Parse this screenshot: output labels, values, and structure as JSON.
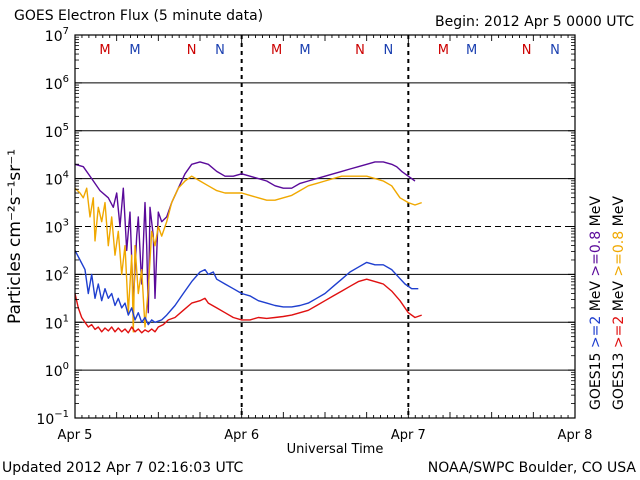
{
  "header": {
    "title": "GOES Electron Flux (5 minute data)",
    "begin": "Begin: 2012 Apr 5 0000 UTC"
  },
  "footer": {
    "updated": "Updated 2012 Apr  7 02:16:03 UTC",
    "credit": "NOAA/SWPC Boulder, CO USA"
  },
  "colors": {
    "goes15_2mev": "#1f3fcf",
    "goes13_2mev": "#e01010",
    "goes15_08mev": "#5a0a9a",
    "goes13_08mev": "#f0a800",
    "marker_m": "#cc0000",
    "marker_n": "#1a3fb0"
  },
  "chart_data": {
    "type": "line",
    "title": "GOES Electron Flux (5 minute data)",
    "xlabel": "Universal Time",
    "ylabel": "Particles cm⁻²s⁻¹sr⁻¹",
    "x_units": "days since 2012 Apr 5 0000 UTC",
    "xlim": [
      0,
      3
    ],
    "ylim_log10": [
      -1,
      7
    ],
    "y_scale": "log",
    "x_ticks": [
      {
        "x": 0,
        "label": "Apr 5"
      },
      {
        "x": 1,
        "label": "Apr 6"
      },
      {
        "x": 2,
        "label": "Apr 7"
      },
      {
        "x": 3,
        "label": "Apr 8"
      }
    ],
    "y_ticks": [
      {
        "exp": -1,
        "base": "10",
        "sup": "−1"
      },
      {
        "exp": 0,
        "base": "10",
        "sup": "0"
      },
      {
        "exp": 1,
        "base": "10",
        "sup": "1"
      },
      {
        "exp": 2,
        "base": "10",
        "sup": "2"
      },
      {
        "exp": 3,
        "base": "10",
        "sup": "3"
      },
      {
        "exp": 4,
        "base": "10",
        "sup": "4"
      },
      {
        "exp": 5,
        "base": "10",
        "sup": "5"
      },
      {
        "exp": 6,
        "base": "10",
        "sup": "6"
      },
      {
        "exp": 7,
        "base": "10",
        "sup": "7"
      }
    ],
    "threshold_log10": 3,
    "day_dividers": [
      1,
      2
    ],
    "markers": [
      {
        "x": 0.18,
        "label": "M",
        "kind": "m"
      },
      {
        "x": 0.36,
        "label": "M",
        "kind": "n"
      },
      {
        "x": 0.7,
        "label": "N",
        "kind": "m"
      },
      {
        "x": 0.87,
        "label": "N",
        "kind": "n"
      },
      {
        "x": 1.21,
        "label": "M",
        "kind": "m"
      },
      {
        "x": 1.38,
        "label": "M",
        "kind": "n"
      },
      {
        "x": 1.71,
        "label": "N",
        "kind": "m"
      },
      {
        "x": 1.88,
        "label": "N",
        "kind": "n"
      },
      {
        "x": 2.21,
        "label": "M",
        "kind": "m"
      },
      {
        "x": 2.38,
        "label": "M",
        "kind": "n"
      },
      {
        "x": 2.71,
        "label": "N",
        "kind": "m"
      },
      {
        "x": 2.88,
        "label": "N",
        "kind": "n"
      }
    ],
    "legend": [
      {
        "prefix": "GOES15",
        "label": ">=2",
        "unit": "MeV",
        "label2": ">=0.8",
        "unit2": "MeV",
        "color": "#1f3fcf",
        "color2": "#5a0a9a"
      },
      {
        "prefix": "GOES13",
        "label": ">=2",
        "unit": "MeV",
        "label2": ">=0.8",
        "unit2": "MeV",
        "color": "#e01010",
        "color2": "#f0a800"
      }
    ],
    "series": [
      {
        "name": "GOES15 >=0.8 MeV",
        "color": "#5a0a9a",
        "points_log10": [
          [
            0.0,
            4.3
          ],
          [
            0.05,
            4.25
          ],
          [
            0.1,
            4.0
          ],
          [
            0.15,
            3.75
          ],
          [
            0.2,
            3.6
          ],
          [
            0.23,
            3.4
          ],
          [
            0.25,
            3.7
          ],
          [
            0.27,
            3.0
          ],
          [
            0.29,
            3.8
          ],
          [
            0.31,
            2.5
          ],
          [
            0.33,
            3.3
          ],
          [
            0.35,
            1.4
          ],
          [
            0.37,
            2.8
          ],
          [
            0.38,
            3.2
          ],
          [
            0.4,
            1.8
          ],
          [
            0.42,
            3.5
          ],
          [
            0.43,
            2.6
          ],
          [
            0.44,
            1.2
          ],
          [
            0.45,
            3.4
          ],
          [
            0.47,
            2.8
          ],
          [
            0.48,
            1.5
          ],
          [
            0.5,
            3.3
          ],
          [
            0.52,
            3.1
          ],
          [
            0.55,
            3.2
          ],
          [
            0.58,
            3.5
          ],
          [
            0.62,
            3.8
          ],
          [
            0.66,
            4.1
          ],
          [
            0.7,
            4.3
          ],
          [
            0.75,
            4.35
          ],
          [
            0.8,
            4.3
          ],
          [
            0.85,
            4.15
          ],
          [
            0.9,
            4.05
          ],
          [
            0.95,
            4.05
          ],
          [
            1.0,
            4.1
          ],
          [
            1.05,
            4.05
          ],
          [
            1.1,
            4.0
          ],
          [
            1.15,
            3.95
          ],
          [
            1.2,
            3.85
          ],
          [
            1.25,
            3.8
          ],
          [
            1.3,
            3.8
          ],
          [
            1.35,
            3.9
          ],
          [
            1.4,
            3.95
          ],
          [
            1.45,
            4.0
          ],
          [
            1.5,
            4.05
          ],
          [
            1.55,
            4.1
          ],
          [
            1.6,
            4.15
          ],
          [
            1.65,
            4.2
          ],
          [
            1.7,
            4.25
          ],
          [
            1.75,
            4.3
          ],
          [
            1.8,
            4.35
          ],
          [
            1.85,
            4.35
          ],
          [
            1.9,
            4.3
          ],
          [
            1.93,
            4.25
          ],
          [
            1.96,
            4.15
          ],
          [
            2.0,
            4.05
          ],
          [
            2.04,
            3.95
          ]
        ]
      },
      {
        "name": "GOES13 >=0.8 MeV",
        "color": "#f0a800",
        "points_log10": [
          [
            0.0,
            3.8
          ],
          [
            0.03,
            3.7
          ],
          [
            0.05,
            3.6
          ],
          [
            0.07,
            3.8
          ],
          [
            0.09,
            3.2
          ],
          [
            0.11,
            3.6
          ],
          [
            0.12,
            2.7
          ],
          [
            0.14,
            3.4
          ],
          [
            0.16,
            3.1
          ],
          [
            0.18,
            3.5
          ],
          [
            0.2,
            2.6
          ],
          [
            0.22,
            3.2
          ],
          [
            0.24,
            2.4
          ],
          [
            0.26,
            2.9
          ],
          [
            0.28,
            2.0
          ],
          [
            0.3,
            2.6
          ],
          [
            0.32,
            1.2
          ],
          [
            0.34,
            2.4
          ],
          [
            0.35,
            0.8
          ],
          [
            0.36,
            2.6
          ],
          [
            0.38,
            1.6
          ],
          [
            0.4,
            2.1
          ],
          [
            0.42,
            0.9
          ],
          [
            0.44,
            1.7
          ],
          [
            0.46,
            2.9
          ],
          [
            0.48,
            2.6
          ],
          [
            0.5,
            3.0
          ],
          [
            0.52,
            2.8
          ],
          [
            0.55,
            3.1
          ],
          [
            0.58,
            3.5
          ],
          [
            0.62,
            3.8
          ],
          [
            0.66,
            3.95
          ],
          [
            0.7,
            4.05
          ],
          [
            0.75,
            3.95
          ],
          [
            0.8,
            3.85
          ],
          [
            0.85,
            3.75
          ],
          [
            0.9,
            3.7
          ],
          [
            0.95,
            3.7
          ],
          [
            1.0,
            3.7
          ],
          [
            1.05,
            3.65
          ],
          [
            1.1,
            3.6
          ],
          [
            1.15,
            3.55
          ],
          [
            1.2,
            3.55
          ],
          [
            1.25,
            3.6
          ],
          [
            1.3,
            3.65
          ],
          [
            1.35,
            3.75
          ],
          [
            1.4,
            3.85
          ],
          [
            1.45,
            3.9
          ],
          [
            1.5,
            3.95
          ],
          [
            1.55,
            4.0
          ],
          [
            1.6,
            4.05
          ],
          [
            1.65,
            4.05
          ],
          [
            1.7,
            4.05
          ],
          [
            1.75,
            4.05
          ],
          [
            1.8,
            4.0
          ],
          [
            1.85,
            3.95
          ],
          [
            1.9,
            3.85
          ],
          [
            1.95,
            3.6
          ],
          [
            2.0,
            3.5
          ],
          [
            2.04,
            3.45
          ],
          [
            2.08,
            3.5
          ]
        ]
      },
      {
        "name": "GOES15 >=2 MeV",
        "color": "#1f3fcf",
        "points_log10": [
          [
            0.0,
            2.5
          ],
          [
            0.03,
            2.3
          ],
          [
            0.06,
            2.1
          ],
          [
            0.08,
            1.6
          ],
          [
            0.1,
            2.0
          ],
          [
            0.12,
            1.5
          ],
          [
            0.14,
            1.8
          ],
          [
            0.16,
            1.45
          ],
          [
            0.18,
            1.7
          ],
          [
            0.2,
            1.5
          ],
          [
            0.22,
            1.6
          ],
          [
            0.24,
            1.35
          ],
          [
            0.26,
            1.5
          ],
          [
            0.28,
            1.3
          ],
          [
            0.3,
            1.4
          ],
          [
            0.32,
            1.15
          ],
          [
            0.34,
            1.3
          ],
          [
            0.36,
            1.05
          ],
          [
            0.38,
            1.2
          ],
          [
            0.4,
            1.0
          ],
          [
            0.42,
            1.1
          ],
          [
            0.44,
            0.95
          ],
          [
            0.46,
            1.05
          ],
          [
            0.48,
            1.0
          ],
          [
            0.52,
            1.05
          ],
          [
            0.55,
            1.15
          ],
          [
            0.6,
            1.35
          ],
          [
            0.65,
            1.6
          ],
          [
            0.7,
            1.85
          ],
          [
            0.75,
            2.05
          ],
          [
            0.78,
            2.1
          ],
          [
            0.8,
            2.0
          ],
          [
            0.83,
            2.05
          ],
          [
            0.85,
            1.9
          ],
          [
            0.9,
            1.8
          ],
          [
            0.95,
            1.7
          ],
          [
            1.0,
            1.6
          ],
          [
            1.05,
            1.55
          ],
          [
            1.1,
            1.45
          ],
          [
            1.15,
            1.4
          ],
          [
            1.2,
            1.35
          ],
          [
            1.25,
            1.32
          ],
          [
            1.3,
            1.32
          ],
          [
            1.35,
            1.35
          ],
          [
            1.4,
            1.4
          ],
          [
            1.45,
            1.5
          ],
          [
            1.5,
            1.6
          ],
          [
            1.55,
            1.75
          ],
          [
            1.6,
            1.9
          ],
          [
            1.65,
            2.05
          ],
          [
            1.7,
            2.15
          ],
          [
            1.75,
            2.25
          ],
          [
            1.8,
            2.2
          ],
          [
            1.85,
            2.2
          ],
          [
            1.9,
            2.1
          ],
          [
            1.94,
            1.95
          ],
          [
            1.98,
            1.8
          ],
          [
            2.02,
            1.7
          ],
          [
            2.06,
            1.7
          ]
        ]
      },
      {
        "name": "GOES13 >=2 MeV",
        "color": "#e01010",
        "points_log10": [
          [
            0.0,
            1.6
          ],
          [
            0.02,
            1.3
          ],
          [
            0.04,
            1.1
          ],
          [
            0.06,
            1.0
          ],
          [
            0.08,
            0.9
          ],
          [
            0.1,
            0.95
          ],
          [
            0.12,
            0.85
          ],
          [
            0.14,
            0.9
          ],
          [
            0.16,
            0.8
          ],
          [
            0.18,
            0.88
          ],
          [
            0.2,
            0.82
          ],
          [
            0.22,
            0.9
          ],
          [
            0.24,
            0.8
          ],
          [
            0.26,
            0.88
          ],
          [
            0.28,
            0.8
          ],
          [
            0.3,
            0.86
          ],
          [
            0.32,
            0.78
          ],
          [
            0.34,
            0.9
          ],
          [
            0.36,
            0.8
          ],
          [
            0.38,
            0.86
          ],
          [
            0.4,
            0.78
          ],
          [
            0.42,
            0.84
          ],
          [
            0.44,
            0.8
          ],
          [
            0.46,
            0.86
          ],
          [
            0.48,
            0.8
          ],
          [
            0.5,
            0.9
          ],
          [
            0.53,
            0.95
          ],
          [
            0.56,
            1.05
          ],
          [
            0.6,
            1.1
          ],
          [
            0.65,
            1.25
          ],
          [
            0.7,
            1.4
          ],
          [
            0.75,
            1.45
          ],
          [
            0.78,
            1.5
          ],
          [
            0.8,
            1.4
          ],
          [
            0.85,
            1.3
          ],
          [
            0.9,
            1.2
          ],
          [
            0.95,
            1.1
          ],
          [
            1.0,
            1.05
          ],
          [
            1.05,
            1.05
          ],
          [
            1.1,
            1.1
          ],
          [
            1.15,
            1.08
          ],
          [
            1.2,
            1.1
          ],
          [
            1.25,
            1.12
          ],
          [
            1.3,
            1.15
          ],
          [
            1.35,
            1.2
          ],
          [
            1.4,
            1.25
          ],
          [
            1.45,
            1.35
          ],
          [
            1.5,
            1.45
          ],
          [
            1.55,
            1.55
          ],
          [
            1.6,
            1.65
          ],
          [
            1.65,
            1.75
          ],
          [
            1.7,
            1.85
          ],
          [
            1.75,
            1.9
          ],
          [
            1.8,
            1.85
          ],
          [
            1.85,
            1.8
          ],
          [
            1.9,
            1.65
          ],
          [
            1.95,
            1.45
          ],
          [
            2.0,
            1.2
          ],
          [
            2.04,
            1.1
          ],
          [
            2.08,
            1.15
          ]
        ]
      }
    ]
  }
}
